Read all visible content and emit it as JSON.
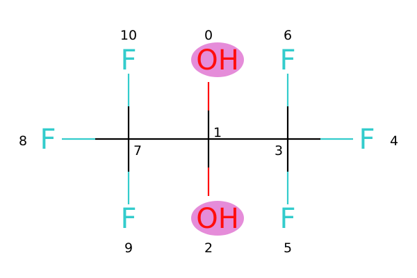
{
  "colors": {
    "fluorine": "#33CCCC",
    "oxygen": "#FF0D0D",
    "carbon_bond": "#000000",
    "highlight": "#E58CD9",
    "index_text": "#000000"
  },
  "atoms": [
    {
      "id": "atom-0",
      "element": "O",
      "label": "OH",
      "index": "0",
      "highlight": true
    },
    {
      "id": "atom-1",
      "element": "C",
      "label": "",
      "index": "1",
      "highlight": false
    },
    {
      "id": "atom-2",
      "element": "O",
      "label": "OH",
      "index": "2",
      "highlight": true
    },
    {
      "id": "atom-3",
      "element": "C",
      "label": "",
      "index": "3",
      "highlight": false
    },
    {
      "id": "atom-4",
      "element": "F",
      "label": "F",
      "index": "4",
      "highlight": false
    },
    {
      "id": "atom-5",
      "element": "F",
      "label": "F",
      "index": "5",
      "highlight": false
    },
    {
      "id": "atom-6",
      "element": "F",
      "label": "F",
      "index": "6",
      "highlight": false
    },
    {
      "id": "atom-7",
      "element": "C",
      "label": "",
      "index": "7",
      "highlight": false
    },
    {
      "id": "atom-8",
      "element": "F",
      "label": "F",
      "index": "8",
      "highlight": false
    },
    {
      "id": "atom-9",
      "element": "F",
      "label": "F",
      "index": "9",
      "highlight": false
    },
    {
      "id": "atom-10",
      "element": "F",
      "label": "F",
      "index": "10",
      "highlight": false
    }
  ],
  "bonds": [
    {
      "from": 1,
      "to": 0
    },
    {
      "from": 1,
      "to": 2
    },
    {
      "from": 1,
      "to": 3
    },
    {
      "from": 1,
      "to": 7
    },
    {
      "from": 3,
      "to": 4
    },
    {
      "from": 3,
      "to": 5
    },
    {
      "from": 3,
      "to": 6
    },
    {
      "from": 7,
      "to": 8
    },
    {
      "from": 7,
      "to": 9
    },
    {
      "from": 7,
      "to": 10
    }
  ]
}
